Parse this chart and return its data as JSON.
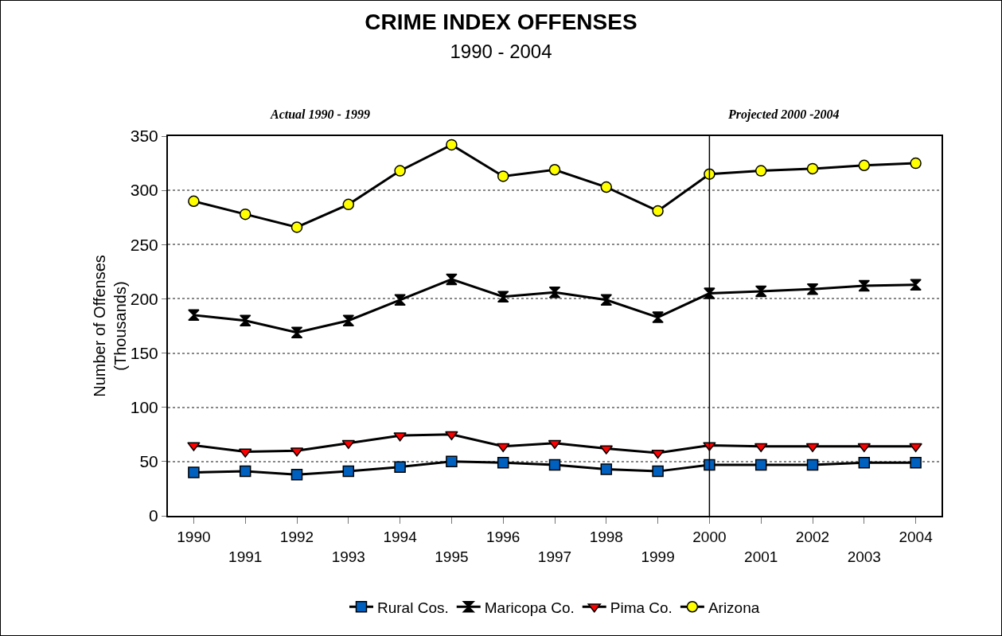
{
  "chart_data": {
    "type": "line",
    "title": "CRIME INDEX OFFENSES",
    "subtitle": "1990 - 2004",
    "ylabel": "Number of Offenses\n(Thousands)",
    "categories": [
      "1990",
      "1991",
      "1992",
      "1993",
      "1994",
      "1995",
      "1996",
      "1997",
      "1998",
      "1999",
      "2000",
      "2001",
      "2002",
      "2003",
      "2004"
    ],
    "series": [
      {
        "name": "Rural Cos.",
        "color": "#0060c0",
        "marker": "square",
        "values": [
          40,
          41,
          38,
          41,
          45,
          50,
          49,
          47,
          43,
          41,
          47,
          47,
          47,
          49,
          49
        ]
      },
      {
        "name": "Maricopa Co.",
        "color": "#000000",
        "marker": "diamond",
        "values": [
          185,
          180,
          169,
          180,
          199,
          218,
          202,
          206,
          199,
          183,
          205,
          207,
          209,
          212,
          213
        ]
      },
      {
        "name": "Pima Co.",
        "color": "#ff0000",
        "marker": "triangle",
        "values": [
          65,
          59,
          60,
          67,
          74,
          75,
          64,
          67,
          62,
          58,
          65,
          64,
          64,
          64,
          64
        ]
      },
      {
        "name": "Arizona",
        "color": "#ffff00",
        "marker": "circle",
        "values": [
          290,
          278,
          266,
          287,
          318,
          342,
          313,
          319,
          303,
          281,
          315,
          318,
          320,
          323,
          325
        ]
      }
    ],
    "ylim": [
      0,
      350
    ],
    "yticks": [
      0,
      50,
      100,
      150,
      200,
      250,
      300,
      350
    ],
    "ref_lines": [
      {
        "axis": "x",
        "value": "2000",
        "color": "#000000"
      }
    ],
    "annotations": [
      "Actual 1990 - 1999",
      "Projected 2000 -2004"
    ],
    "grid": "y",
    "legend": "bottom",
    "line_style": "solid"
  }
}
